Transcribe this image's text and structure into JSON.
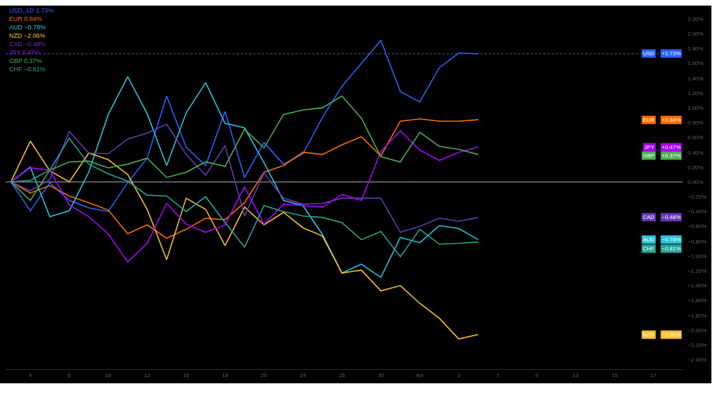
{
  "chart_data": {
    "type": "line",
    "categories": [
      null,
      "4",
      null,
      "6",
      null,
      "10",
      null,
      "12",
      null,
      "16",
      null,
      "18",
      null,
      "20",
      null,
      "24",
      null,
      "26",
      null,
      "30",
      null,
      "Avr",
      null,
      "3",
      null,
      "7",
      null,
      "9",
      null,
      "13",
      null,
      "15",
      null,
      "17",
      null
    ],
    "series": [
      {
        "name": "USD",
        "color": "#2962ff",
        "values": [
          0,
          -0.39,
          -0.01,
          -0.25,
          -0.35,
          -0.4,
          -0.01,
          0.32,
          1.16,
          0.47,
          0.22,
          0.95,
          0.06,
          0.53,
          0.24,
          0.38,
          0.87,
          1.29,
          1.6,
          1.91,
          1.22,
          1.08,
          1.54,
          1.74,
          1.73,
          null,
          null,
          null,
          null,
          null,
          null,
          null,
          null,
          null,
          null
        ],
        "value_labels": [
          null,
          null,
          null,
          null,
          null,
          null,
          null,
          null,
          null,
          null,
          null,
          null,
          null,
          null,
          null,
          null,
          null,
          null,
          null,
          null,
          null,
          null,
          null,
          null,
          null,
          null,
          null,
          null,
          null,
          null,
          null,
          null,
          null,
          null,
          null
        ]
      },
      {
        "name": "EUR",
        "color": "#ff6d00",
        "values": [
          0,
          -0.15,
          -0.05,
          -0.19,
          -0.28,
          -0.38,
          -0.7,
          -0.58,
          -0.76,
          -0.64,
          -0.49,
          -0.51,
          -0.28,
          0.13,
          0.22,
          0.4,
          0.37,
          0.5,
          0.61,
          0.35,
          0.82,
          0.85,
          0.82,
          0.82,
          0.84,
          null,
          null,
          null,
          null,
          null,
          null,
          null,
          null,
          null,
          null
        ],
        "value_labels": [
          null,
          null,
          null,
          null,
          null,
          null,
          null,
          null,
          null,
          null,
          null,
          null,
          null,
          null,
          null,
          null,
          null,
          null,
          null,
          null,
          null,
          null,
          null,
          null,
          null,
          null,
          null,
          null,
          null,
          null,
          null,
          null,
          null,
          null,
          null
        ]
      },
      {
        "name": "AUD",
        "color": "#26c6da",
        "values": [
          0,
          0.2,
          -0.47,
          -0.39,
          0.13,
          0.91,
          1.42,
          0.92,
          0.22,
          0.93,
          1.34,
          0.79,
          0.73,
          0.26,
          -0.25,
          -0.32,
          -0.71,
          -1.23,
          -1.11,
          -1.29,
          -0.75,
          -0.82,
          -0.59,
          -0.63,
          -0.78,
          null,
          null,
          null,
          null,
          null,
          null,
          null,
          null,
          null,
          null
        ],
        "value_labels": [
          null,
          null,
          null,
          null,
          null,
          null,
          null,
          null,
          null,
          null,
          null,
          null,
          null,
          null,
          null,
          null,
          null,
          null,
          null,
          null,
          null,
          null,
          null,
          null,
          null,
          null,
          null,
          null,
          null,
          null,
          null,
          null,
          null,
          null,
          null
        ]
      },
      {
        "name": "NZD",
        "color": "#fbc02d",
        "values": [
          0,
          0.55,
          0.15,
          0.0,
          0.39,
          0.3,
          0.1,
          -0.37,
          -1.05,
          -0.22,
          -0.37,
          -0.86,
          -0.34,
          -0.58,
          -0.41,
          -0.62,
          -0.73,
          -1.23,
          -1.19,
          -1.47,
          -1.4,
          -1.64,
          -1.84,
          -2.12,
          -2.06,
          null,
          null,
          null,
          null,
          null,
          null,
          null,
          null,
          null,
          null
        ],
        "value_labels": [
          null,
          null,
          null,
          null,
          null,
          null,
          null,
          null,
          null,
          null,
          null,
          null,
          null,
          null,
          null,
          null,
          null,
          null,
          null,
          null,
          null,
          null,
          null,
          null,
          null,
          null,
          null,
          null,
          null,
          null,
          null,
          null,
          null,
          null,
          null
        ]
      },
      {
        "name": "CAD",
        "color": "#673ab7",
        "values": [
          0,
          -0.12,
          0.03,
          0.68,
          0.39,
          0.38,
          0.58,
          0.66,
          0.78,
          0.37,
          0.09,
          0.49,
          -0.46,
          0.12,
          -0.22,
          -0.3,
          -0.29,
          -0.22,
          -0.22,
          -0.22,
          -0.68,
          -0.6,
          -0.49,
          -0.53,
          -0.48,
          null,
          null,
          null,
          null,
          null,
          null,
          null,
          null,
          null,
          null
        ],
        "value_labels": [
          null,
          null,
          null,
          null,
          null,
          null,
          null,
          null,
          null,
          null,
          null,
          null,
          null,
          null,
          null,
          null,
          null,
          null,
          null,
          null,
          null,
          null,
          null,
          null,
          null,
          null,
          null,
          null,
          null,
          null,
          null,
          null,
          null,
          null,
          null
        ]
      },
      {
        "name": "JPY",
        "color": "#aa00ff",
        "values": [
          0,
          0.19,
          0.16,
          -0.31,
          -0.47,
          -0.7,
          -1.08,
          -0.83,
          -0.29,
          -0.57,
          -0.68,
          -0.58,
          -0.07,
          -0.57,
          -0.3,
          -0.32,
          -0.34,
          -0.17,
          -0.25,
          0.41,
          0.69,
          0.43,
          0.29,
          0.4,
          0.47,
          null,
          null,
          null,
          null,
          null,
          null,
          null,
          null,
          null,
          null
        ],
        "value_labels": [
          null,
          null,
          null,
          null,
          null,
          null,
          null,
          null,
          null,
          null,
          null,
          null,
          null,
          null,
          null,
          null,
          null,
          null,
          null,
          null,
          null,
          null,
          null,
          null,
          null,
          null,
          null,
          null,
          null,
          null,
          null,
          null,
          null,
          null,
          null
        ]
      },
      {
        "name": "GBP",
        "color": "#4caf50",
        "values": [
          0,
          -0.25,
          0.16,
          0.27,
          0.28,
          0.19,
          0.24,
          0.32,
          0.06,
          0.13,
          0.27,
          0.21,
          0.71,
          0.46,
          0.91,
          0.97,
          1.0,
          1.16,
          0.86,
          0.34,
          0.27,
          0.67,
          0.48,
          0.44,
          0.37,
          null,
          null,
          null,
          null,
          null,
          null,
          null,
          null,
          null,
          null
        ],
        "value_labels": [
          null,
          null,
          null,
          null,
          null,
          null,
          null,
          null,
          null,
          null,
          null,
          null,
          null,
          null,
          null,
          null,
          null,
          null,
          null,
          null,
          null,
          null,
          null,
          null,
          null,
          null,
          null,
          null,
          null,
          null,
          null,
          null,
          null,
          null,
          null
        ]
      },
      {
        "name": "CHF",
        "color": "#26a69a",
        "values": [
          0,
          0.02,
          0.16,
          0.59,
          0.24,
          0.11,
          0.01,
          -0.18,
          -0.19,
          -0.4,
          -0.2,
          -0.55,
          -0.88,
          -0.32,
          -0.4,
          -0.46,
          -0.48,
          -0.55,
          -0.78,
          -0.67,
          -1.01,
          -0.64,
          -0.84,
          -0.83,
          -0.81,
          null,
          null,
          null,
          null,
          null,
          null,
          null,
          null,
          null,
          null
        ],
        "value_labels": [
          null,
          null,
          null,
          null,
          null,
          null,
          null,
          null,
          null,
          null,
          null,
          null,
          null,
          null,
          null,
          null,
          null,
          null,
          null,
          null,
          null,
          null,
          null,
          null,
          null,
          null,
          null,
          null,
          null,
          null,
          null,
          null,
          null,
          null,
          null
        ]
      }
    ],
    "annotations": [
      "USD, 1D 1.73%",
      "EUR 0.84%",
      "AUD −0.78%",
      "NZD −2.06%",
      "CAD −0.48%",
      "JPY 0.47%",
      "GBP 0.37%",
      "CHF −0.81%",
      "+1.73%",
      "+0.84%",
      "−0.78%",
      "−2.06%",
      "−0.48%",
      "+0.47%",
      "+0.37%",
      "−0.81%"
    ],
    "ylim": [
      -2.53,
      2.38
    ],
    "yticks": [
      {
        "value": 2.2,
        "label": "2.20%"
      },
      {
        "value": 2.0,
        "label": "2.00%"
      },
      {
        "value": 1.8,
        "label": "1.80%"
      },
      {
        "value": 1.6,
        "label": "1.60%"
      },
      {
        "value": 1.4,
        "label": "1.40%"
      },
      {
        "value": 1.2,
        "label": "1.20%"
      },
      {
        "value": 1.0,
        "label": "1.00%"
      },
      {
        "value": 0.8,
        "label": "0.80%"
      },
      {
        "value": 0.6,
        "label": "0.60%"
      },
      {
        "value": 0.4,
        "label": "0.40%"
      },
      {
        "value": 0.2,
        "label": "0.20%"
      },
      {
        "value": 0,
        "label": "0.00%"
      },
      {
        "value": -0.2,
        "label": "−0.20%"
      },
      {
        "value": -0.4,
        "label": "−0.40%"
      },
      {
        "value": -0.6,
        "label": "−0.60%"
      },
      {
        "value": -0.8,
        "label": "−0.80%"
      },
      {
        "value": -1.0,
        "label": "−1.00%"
      },
      {
        "value": -1.2,
        "label": "−1.20%"
      },
      {
        "value": -1.4,
        "label": "−1.40%"
      },
      {
        "value": -1.6,
        "label": "−1.60%"
      },
      {
        "value": -1.8,
        "label": "−1.80%"
      },
      {
        "value": -2.0,
        "label": "−2.00%"
      },
      {
        "value": -2.2,
        "label": "−2.20%"
      },
      {
        "value": -2.4,
        "label": "−2.40%"
      }
    ],
    "ref_lines": [
      {
        "axis": "y",
        "value": 1.73,
        "color": "#2962ff",
        "line_style": "dotted"
      },
      {
        "axis": "y",
        "value": 0,
        "color": "#b2b5be",
        "line_style": "solid"
      }
    ],
    "grid": false,
    "legend": "right",
    "marker": "none",
    "line_style": "solid"
  }
}
